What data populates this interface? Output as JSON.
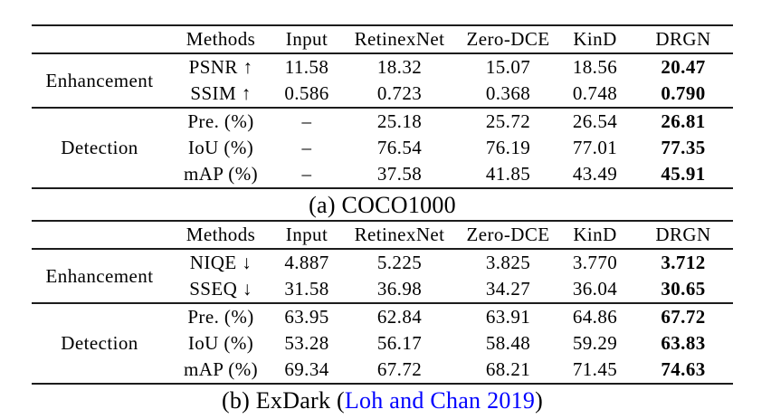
{
  "page": {
    "background": "#ffffff",
    "text_color": "#000000",
    "rule_color": "#1c1c1c",
    "citation_color": "#0000ff"
  },
  "tables": [
    {
      "name": "COCO1000 results table",
      "header": {
        "group": "",
        "methods": "Methods",
        "cols": [
          "Input",
          "RetinexNet",
          "Zero-DCE",
          "KinD",
          "DRGN"
        ]
      },
      "sections": [
        {
          "group": "Enhancement",
          "rows": [
            {
              "metric": "PSNR ↑",
              "values": [
                "11.58",
                "18.32",
                "15.07",
                "18.56",
                "20.47"
              ]
            },
            {
              "metric": "SSIM ↑",
              "values": [
                "0.586",
                "0.723",
                "0.368",
                "0.748",
                "0.790"
              ]
            }
          ]
        },
        {
          "group": "Detection",
          "rows": [
            {
              "metric": "Pre. (%)",
              "values": [
                "–",
                "25.18",
                "25.72",
                "26.54",
                "26.81"
              ]
            },
            {
              "metric": "IoU (%)",
              "values": [
                "–",
                "76.54",
                "76.19",
                "77.01",
                "77.35"
              ]
            },
            {
              "metric": "mAP (%)",
              "values": [
                "–",
                "37.58",
                "41.85",
                "43.49",
                "45.91"
              ]
            }
          ]
        }
      ],
      "caption": {
        "black": "(a) COCO1000",
        "cite": "",
        "close": ""
      }
    },
    {
      "name": "ExDark results table",
      "header": {
        "group": "",
        "methods": "Methods",
        "cols": [
          "Input",
          "RetinexNet",
          "Zero-DCE",
          "KinD",
          "DRGN"
        ]
      },
      "sections": [
        {
          "group": "Enhancement",
          "rows": [
            {
              "metric": "NIQE ↓",
              "values": [
                "4.887",
                "5.225",
                "3.825",
                "3.770",
                "3.712"
              ]
            },
            {
              "metric": "SSEQ ↓",
              "values": [
                "31.58",
                "36.98",
                "34.27",
                "36.04",
                "30.65"
              ]
            }
          ]
        },
        {
          "group": "Detection",
          "rows": [
            {
              "metric": "Pre. (%)",
              "values": [
                "63.95",
                "62.84",
                "63.91",
                "64.86",
                "67.72"
              ]
            },
            {
              "metric": "IoU (%)",
              "values": [
                "53.28",
                "56.17",
                "58.48",
                "59.29",
                "63.83"
              ]
            },
            {
              "metric": "mAP (%)",
              "values": [
                "69.34",
                "67.72",
                "68.21",
                "71.45",
                "74.63"
              ]
            }
          ]
        }
      ],
      "caption": {
        "black": "(b) ExDark (",
        "cite": "Loh and Chan 2019",
        "close": ")"
      }
    }
  ]
}
